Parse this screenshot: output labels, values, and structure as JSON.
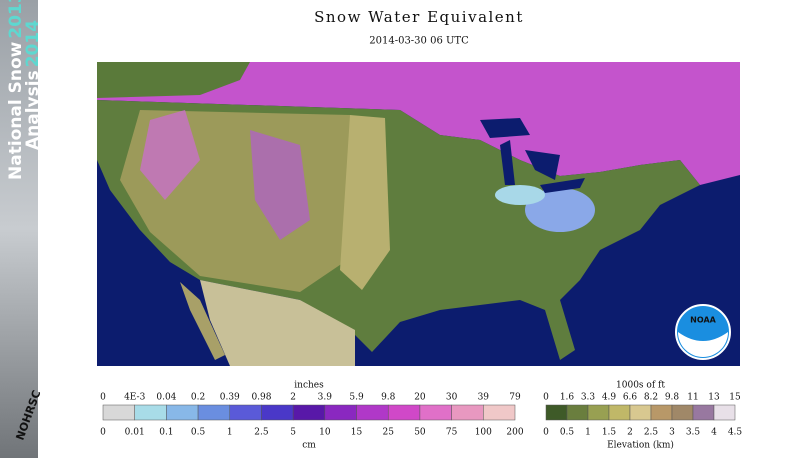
{
  "sidebar": {
    "line1": "National Snow",
    "line1_year": "2013-",
    "line2": "Analysis",
    "line2_year": "2014",
    "logo": "NOHRSC"
  },
  "header": {
    "title": "Snow Water Equivalent",
    "date": "2014-03-30 06 UTC"
  },
  "map": {
    "logo": "NOAA"
  },
  "swe_legend": {
    "top_unit": "inches",
    "top_labels": [
      "0",
      "4E-3",
      "0.04",
      "0.2",
      "0.39",
      "0.98",
      "2",
      "3.9",
      "5.9",
      "9.8",
      "20",
      "30",
      "39",
      "79"
    ],
    "bottom_labels": [
      "0",
      "0.01",
      "0.1",
      "0.5",
      "1",
      "2.5",
      "5",
      "10",
      "15",
      "25",
      "50",
      "75",
      "100",
      "200"
    ],
    "bottom_unit": "cm",
    "colors": [
      "#d8d8d8",
      "#a8dce8",
      "#88b8e8",
      "#6a8ee0",
      "#5a5ad8",
      "#4a38c8",
      "#5818a8",
      "#8a28c0",
      "#b038c8",
      "#d048c8",
      "#e070c8",
      "#e898c0",
      "#f0c8c8"
    ]
  },
  "elev_legend": {
    "top_unit": "1000s of ft",
    "top_labels": [
      "0",
      "1.6",
      "3.3",
      "4.9",
      "6.6",
      "8.2",
      "9.8",
      "11",
      "13",
      "15"
    ],
    "bottom_labels": [
      "0",
      "0.5",
      "1",
      "1.5",
      "2",
      "2.5",
      "3",
      "3.5",
      "4",
      "4.5"
    ],
    "bottom_unit": "Elevation (km)",
    "colors": [
      "#3e5a28",
      "#6a7e3e",
      "#98a052",
      "#c0b868",
      "#d8c890",
      "#b89868",
      "#a08868",
      "#9878a0",
      "#e8e0e8"
    ]
  }
}
